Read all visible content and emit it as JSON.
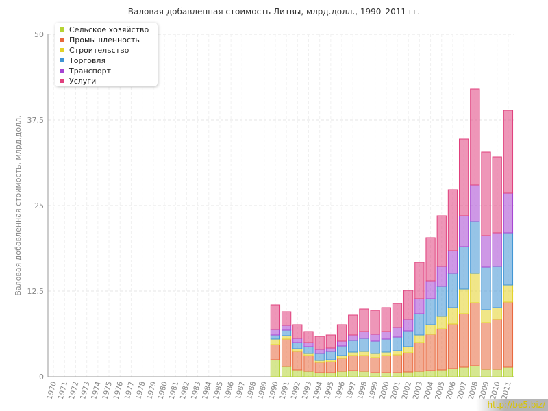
{
  "chart_data": {
    "type": "bar",
    "stacked": true,
    "title": "Валовая добавленная стоимость Литвы, млрд.долл., 1990–2011 гг.",
    "ylabel": "Валовая добавленная стоимость, млрд.долл.",
    "xlabel": "",
    "ylim": [
      0,
      50
    ],
    "yticks": [
      "0",
      "12.5",
      "25",
      "37.5",
      "50"
    ],
    "grid": true,
    "legend_position": "top-left",
    "categories": [
      "1970",
      "1971",
      "1972",
      "1973",
      "1974",
      "1975",
      "1976",
      "1977",
      "1978",
      "1979",
      "1980",
      "1981",
      "1982",
      "1983",
      "1984",
      "1985",
      "1986",
      "1987",
      "1988",
      "1989",
      "1990",
      "1991",
      "1992",
      "1993",
      "1994",
      "1995",
      "1996",
      "1997",
      "1998",
      "1999",
      "2000",
      "2001",
      "2002",
      "2003",
      "2004",
      "2005",
      "2006",
      "2007",
      "2008",
      "2009",
      "2010",
      "2011"
    ],
    "series": [
      {
        "name": "Сельское хозяйство",
        "color": "#b5d334",
        "values": [
          null,
          null,
          null,
          null,
          null,
          null,
          null,
          null,
          null,
          null,
          null,
          null,
          null,
          null,
          null,
          null,
          null,
          null,
          null,
          null,
          2.5,
          1.5,
          1.0,
          0.8,
          0.6,
          0.6,
          0.8,
          0.9,
          0.8,
          0.6,
          0.6,
          0.6,
          0.7,
          0.8,
          0.9,
          1.0,
          1.2,
          1.4,
          1.6,
          1.1,
          1.1,
          1.4
        ]
      },
      {
        "name": "Промышленность",
        "color": "#e8673c",
        "values": [
          null,
          null,
          null,
          null,
          null,
          null,
          null,
          null,
          null,
          null,
          null,
          null,
          null,
          null,
          null,
          null,
          null,
          null,
          null,
          null,
          2.2,
          4.0,
          2.7,
          2.3,
          1.5,
          1.6,
          1.9,
          2.2,
          2.3,
          2.2,
          2.5,
          2.6,
          2.8,
          4.2,
          5.3,
          6.0,
          6.5,
          7.8,
          9.2,
          6.8,
          7.3,
          9.5
        ]
      },
      {
        "name": "Строительство",
        "color": "#e3d227",
        "values": [
          null,
          null,
          null,
          null,
          null,
          null,
          null,
          null,
          null,
          null,
          null,
          null,
          null,
          null,
          null,
          null,
          null,
          null,
          null,
          null,
          0.8,
          0.5,
          0.4,
          0.3,
          0.3,
          0.3,
          0.4,
          0.5,
          0.6,
          0.6,
          0.5,
          0.6,
          0.9,
          1.1,
          1.4,
          1.8,
          2.4,
          3.6,
          4.3,
          1.9,
          1.7,
          2.5
        ]
      },
      {
        "name": "Торговля",
        "color": "#3f94d4",
        "values": [
          null,
          null,
          null,
          null,
          null,
          null,
          null,
          null,
          null,
          null,
          null,
          null,
          null,
          null,
          null,
          null,
          null,
          null,
          null,
          null,
          0.6,
          0.8,
          0.9,
          1.0,
          1.0,
          1.2,
          1.4,
          1.7,
          1.9,
          1.8,
          1.9,
          2.0,
          2.3,
          3.1,
          3.8,
          4.4,
          5.0,
          6.2,
          7.6,
          6.2,
          6.0,
          7.6
        ]
      },
      {
        "name": "Транспорт",
        "color": "#a544d2",
        "values": [
          null,
          null,
          null,
          null,
          null,
          null,
          null,
          null,
          null,
          null,
          null,
          null,
          null,
          null,
          null,
          null,
          null,
          null,
          null,
          null,
          0.8,
          0.7,
          0.6,
          0.6,
          0.6,
          0.5,
          0.7,
          0.8,
          1.0,
          1.0,
          1.1,
          1.4,
          1.7,
          2.2,
          2.6,
          2.9,
          3.3,
          4.5,
          5.3,
          4.6,
          4.9,
          5.8
        ]
      },
      {
        "name": "Услуги",
        "color": "#e0407d",
        "values": [
          null,
          null,
          null,
          null,
          null,
          null,
          null,
          null,
          null,
          null,
          null,
          null,
          null,
          null,
          null,
          null,
          null,
          null,
          null,
          null,
          3.6,
          2.0,
          2.0,
          1.6,
          1.9,
          1.9,
          2.4,
          2.9,
          3.3,
          3.5,
          3.5,
          3.5,
          4.2,
          5.3,
          6.3,
          7.4,
          8.9,
          11.2,
          14.0,
          12.2,
          11.1,
          12.1
        ]
      }
    ]
  },
  "watermark": "http://be5.biz/"
}
